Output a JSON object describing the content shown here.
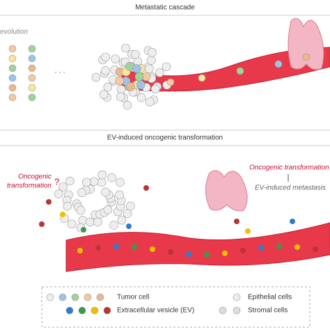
{
  "top_panel": {
    "title": "Metastatic cascade",
    "label": "evolution",
    "ellipsis": "· · ·"
  },
  "bottom_panel": {
    "title": "EV-induced oncogenic transformation",
    "left_label": [
      "Oncogenic",
      "transformation"
    ],
    "question": "?",
    "right_label": "Oncogenic transformation",
    "right_sublabel": "EV-induced metastasis"
  },
  "legend": {
    "items": [
      "Tumor cell",
      "Extracellular vesicle (EV)",
      "Epithelial cells",
      "Stromal cells"
    ]
  }
}
